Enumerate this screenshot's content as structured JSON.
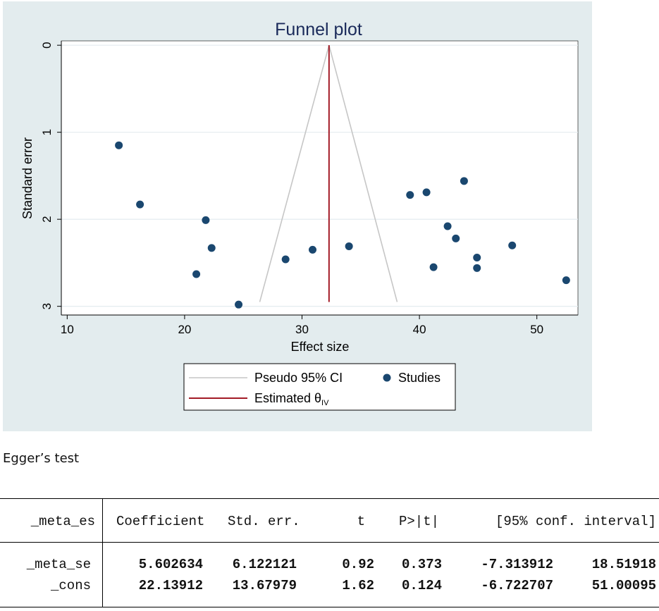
{
  "chart_data": {
    "type": "scatter",
    "title": "Funnel plot",
    "xlabel": "Effect size",
    "ylabel": "Standard error",
    "xlim": [
      9.5,
      53.5
    ],
    "ylim": [
      3.1,
      -0.05
    ],
    "x_ticks": [
      "10",
      "20",
      "30",
      "40",
      "50"
    ],
    "y_ticks": [
      "0",
      "1",
      "2",
      "3"
    ],
    "estimated_theta": 32.3,
    "pseudo_ci": [
      {
        "x": 26.4,
        "y": 2.95
      },
      {
        "x": 32.3,
        "y": 0
      },
      {
        "x": 38.1,
        "y": 2.95
      }
    ],
    "series": [
      {
        "name": "Studies",
        "points": [
          {
            "x": 14.4,
            "y": 1.15
          },
          {
            "x": 16.2,
            "y": 1.83
          },
          {
            "x": 21.8,
            "y": 2.01
          },
          {
            "x": 22.3,
            "y": 2.33
          },
          {
            "x": 21.0,
            "y": 2.63
          },
          {
            "x": 24.6,
            "y": 2.98
          },
          {
            "x": 28.6,
            "y": 2.46
          },
          {
            "x": 30.9,
            "y": 2.35
          },
          {
            "x": 34.0,
            "y": 2.31
          },
          {
            "x": 39.2,
            "y": 1.72
          },
          {
            "x": 40.6,
            "y": 1.69
          },
          {
            "x": 43.8,
            "y": 1.56
          },
          {
            "x": 42.4,
            "y": 2.08
          },
          {
            "x": 43.1,
            "y": 2.22
          },
          {
            "x": 41.2,
            "y": 2.55
          },
          {
            "x": 44.9,
            "y": 2.44
          },
          {
            "x": 44.9,
            "y": 2.56
          },
          {
            "x": 47.9,
            "y": 2.3
          },
          {
            "x": 52.5,
            "y": 2.7
          }
        ]
      }
    ],
    "legend": {
      "position": "bottom",
      "ci_label": "Pseudo 95% CI",
      "studies_label": "Studies",
      "theta_label": "Estimated θ",
      "theta_sub": "IV"
    }
  },
  "colors": {
    "panel_bg": "#e3ecee",
    "ci_line": "#c6c6c6",
    "theta_line": "#a31a26",
    "marker": "#1a476f",
    "grid": "#e4ecef"
  },
  "egger": {
    "title": "Egger’s test",
    "headers": [
      "_meta_es",
      "Coefficient",
      "Std. err.",
      "t",
      "P>|t|",
      "[95% conf. interval]"
    ],
    "rows": [
      {
        "label": "_meta_se",
        "coef": "5.602634",
        "se": "6.122121",
        "t": "0.92",
        "p": "0.373",
        "lo": "-7.313912",
        "hi": "18.51918"
      },
      {
        "label": "_cons",
        "coef": "22.13912",
        "se": "13.67979",
        "t": "1.62",
        "p": "0.124",
        "lo": "-6.722707",
        "hi": "51.00095"
      }
    ]
  }
}
